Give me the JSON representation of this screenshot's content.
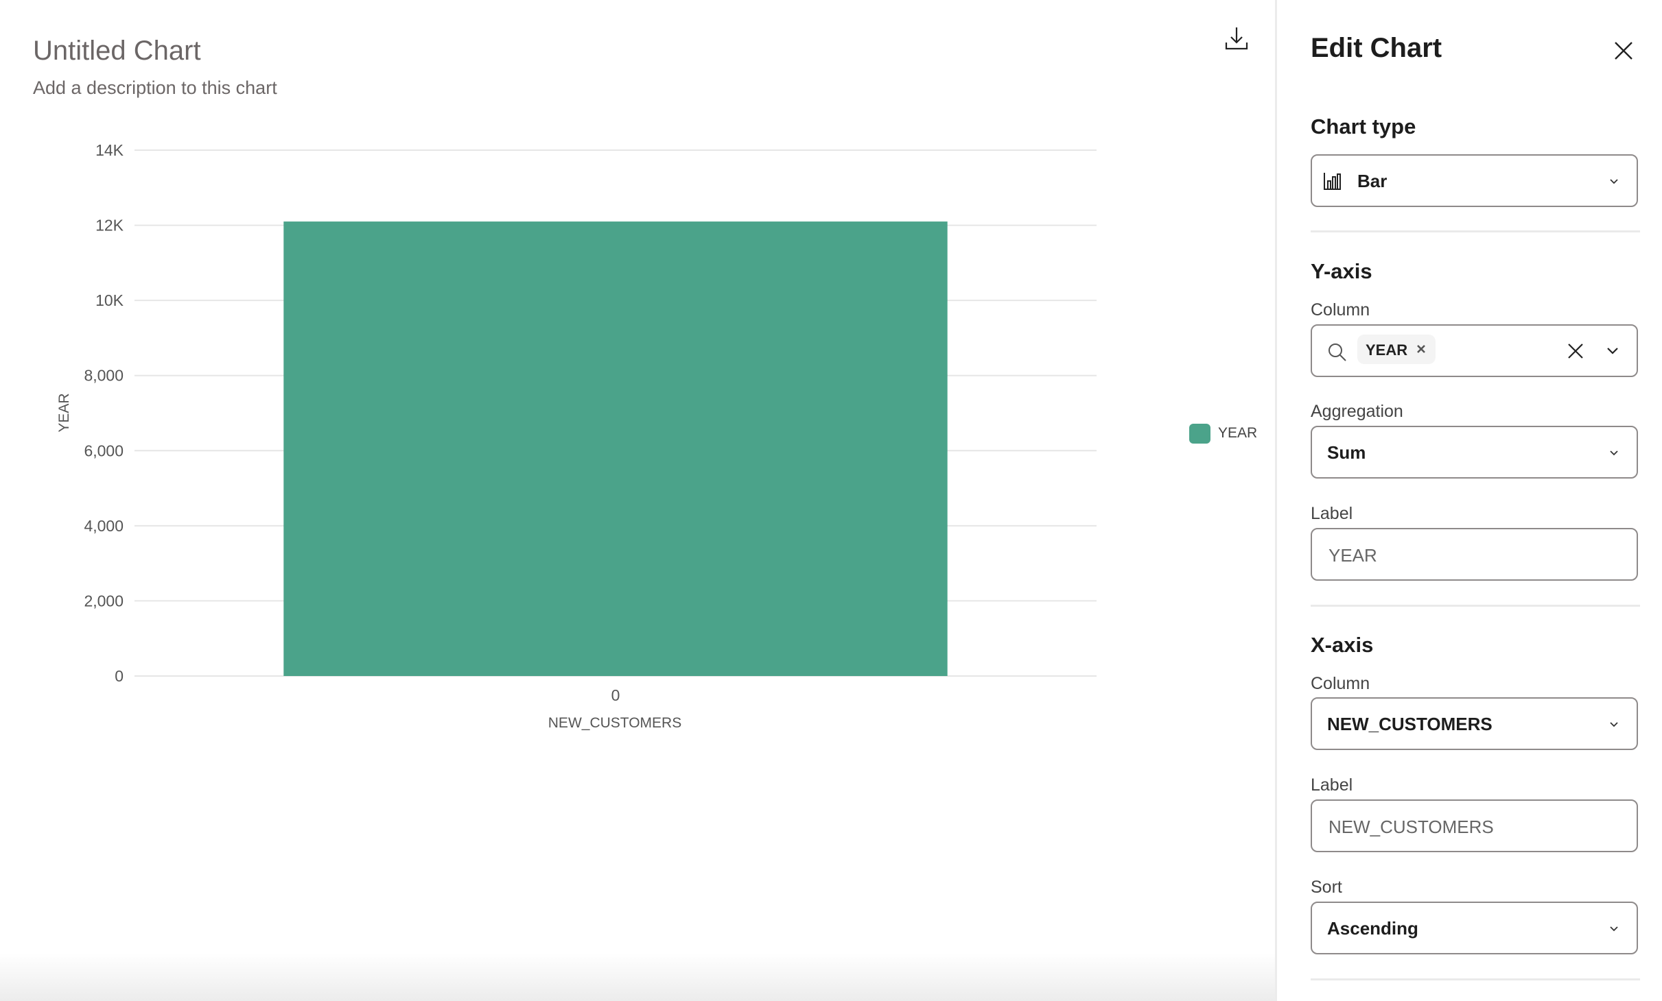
{
  "chart_header": {
    "title": "Untitled Chart",
    "description": "Add a description to this chart",
    "download_icon": "download-icon"
  },
  "chart_data": {
    "type": "bar",
    "categories": [
      "0"
    ],
    "series": [
      {
        "name": "YEAR",
        "values": [
          12100
        ],
        "color": "#4ba38a"
      }
    ],
    "xlabel": "NEW_CUSTOMERS",
    "ylabel": "YEAR",
    "ylim": [
      0,
      14000
    ],
    "yticks": [
      0,
      2000,
      4000,
      6000,
      8000,
      10000,
      12000,
      14000
    ],
    "ytick_labels": [
      "0",
      "2,000",
      "4,000",
      "6,000",
      "8,000",
      "10K",
      "12K",
      "14K"
    ],
    "grid": true,
    "legend": "right"
  },
  "panel": {
    "title": "Edit Chart",
    "chart_type": {
      "heading": "Chart type",
      "value": "Bar"
    },
    "y_axis": {
      "heading": "Y-axis",
      "column_label": "Column",
      "column_chip": "YEAR",
      "aggregation_label": "Aggregation",
      "aggregation_value": "Sum",
      "label_label": "Label",
      "label_placeholder": "YEAR"
    },
    "x_axis": {
      "heading": "X-axis",
      "column_label": "Column",
      "column_value": "NEW_CUSTOMERS",
      "label_label": "Label",
      "label_placeholder": "NEW_CUSTOMERS",
      "sort_label": "Sort",
      "sort_value": "Ascending"
    }
  }
}
